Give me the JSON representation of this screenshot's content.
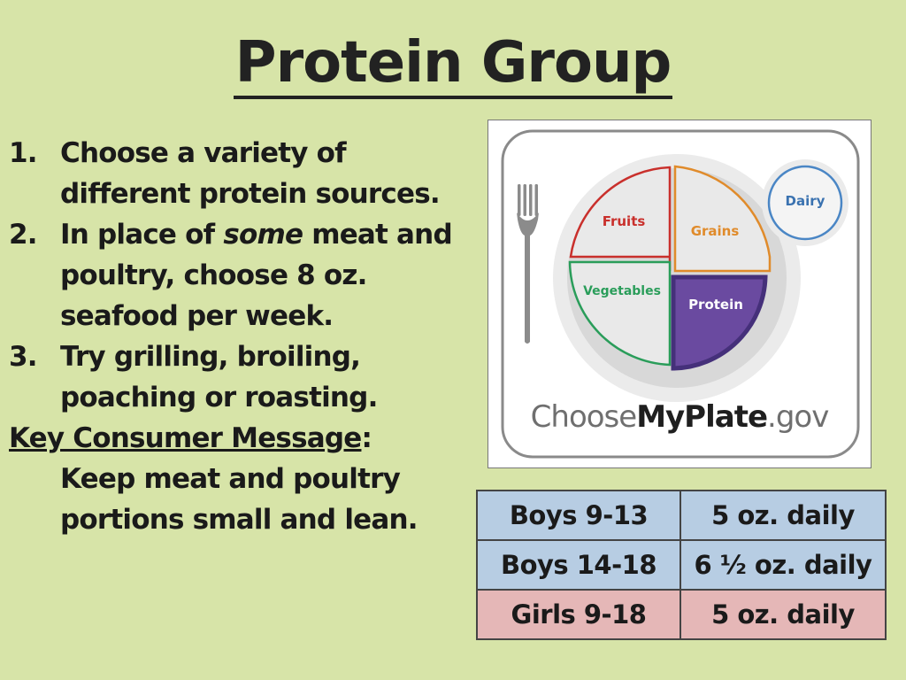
{
  "title": "Protein Group",
  "list": [
    {
      "num": "1.",
      "text": "Choose a variety of different protein sources."
    },
    {
      "num": "2.",
      "pre": "In place of ",
      "em": "some",
      "post": " meat and poultry, choose 8 oz. seafood per week."
    },
    {
      "num": "3.",
      "text": "Try grilling, broiling, poaching or roasting."
    }
  ],
  "key_message_label": "Key Consumer Message",
  "key_message_colon": ":",
  "key_message": "Keep meat and poultry portions small and lean.",
  "plate": {
    "fruits": "Fruits",
    "grains": "Grains",
    "vegetables": "Vegetables",
    "protein": "Protein",
    "dairy": "Dairy",
    "brand_choose": "Choose",
    "brand_myplate": "MyPlate",
    "brand_gov": ".gov"
  },
  "servings": [
    {
      "group": "Boys 9-13",
      "amount": "5 oz. daily",
      "color": "#b7cde3"
    },
    {
      "group": "Boys 14-18",
      "amount": "6 ½ oz. daily",
      "color": "#b7cde3"
    },
    {
      "group": "Girls 9-18",
      "amount": "5 oz. daily",
      "color": "#e5b7b7"
    }
  ]
}
